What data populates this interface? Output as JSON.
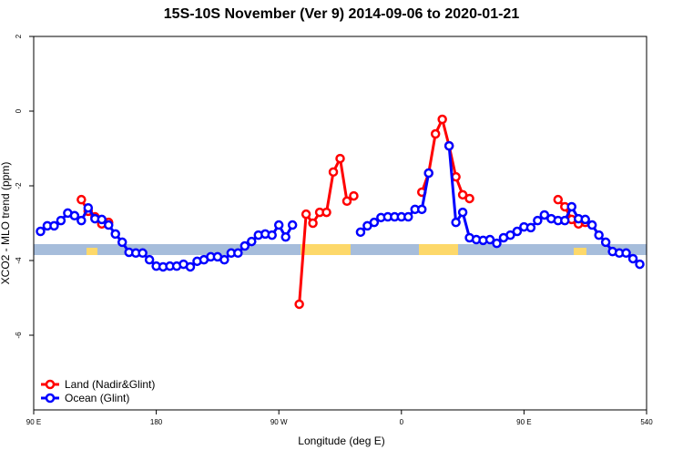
{
  "chart_data": {
    "type": "line",
    "title": "15S-10S November (Ver 9)   2014-09-06 to 2020-01-21",
    "x_label": "Longitude (deg E)",
    "y_label": "XCO2 - MLO trend (ppm)",
    "x": [
      95,
      100,
      105,
      110,
      115,
      120,
      125,
      130,
      135,
      140,
      145,
      150,
      155,
      160,
      165,
      170,
      175,
      180,
      185,
      190,
      195,
      200,
      205,
      210,
      215,
      220,
      225,
      230,
      235,
      240,
      245,
      250,
      255,
      260,
      265,
      270,
      275,
      280,
      285,
      290,
      295,
      300,
      305,
      310,
      315,
      320,
      325,
      330,
      335,
      340,
      345,
      350,
      355,
      360,
      365,
      370,
      375,
      380,
      385,
      390,
      395,
      400,
      405,
      410,
      415,
      420,
      425,
      430,
      435,
      440,
      445,
      450,
      455,
      460,
      465,
      470,
      475,
      480,
      485,
      490,
      495,
      500,
      505,
      510,
      515,
      520,
      525,
      530,
      535
    ],
    "series": [
      {
        "name": "Land (Nadir&Glint)",
        "color": "#ff0000",
        "values": [
          null,
          null,
          null,
          null,
          null,
          null,
          -2.37,
          -2.68,
          -2.83,
          -3.02,
          -2.98,
          null,
          null,
          null,
          null,
          null,
          null,
          null,
          null,
          null,
          null,
          null,
          null,
          null,
          null,
          null,
          null,
          null,
          null,
          null,
          null,
          null,
          null,
          null,
          null,
          null,
          null,
          null,
          -5.17,
          -2.76,
          -3.0,
          -2.71,
          -2.71,
          -1.63,
          -1.27,
          -2.41,
          -2.27,
          null,
          null,
          null,
          null,
          null,
          null,
          null,
          null,
          null,
          -2.17,
          -1.66,
          -0.61,
          -0.22,
          -0.93,
          -1.76,
          -2.24,
          -2.34,
          null,
          null,
          null,
          null,
          null,
          null,
          null,
          null,
          null,
          null,
          null,
          null,
          -2.37,
          -2.56,
          -2.9,
          -3.02,
          -2.98,
          null,
          null,
          null,
          null,
          null,
          null,
          null,
          null
        ]
      },
      {
        "name": "Ocean (Glint)",
        "color": "#0000ff",
        "values": [
          -3.22,
          -3.07,
          -3.07,
          -2.93,
          -2.73,
          -2.8,
          -2.93,
          -2.59,
          -2.88,
          -2.9,
          -3.05,
          -3.29,
          -3.51,
          -3.78,
          -3.8,
          -3.8,
          -3.98,
          -4.15,
          -4.17,
          -4.15,
          -4.15,
          -4.1,
          -4.17,
          -4.02,
          -3.98,
          -3.9,
          -3.9,
          -3.98,
          -3.8,
          -3.8,
          -3.61,
          -3.49,
          -3.32,
          -3.29,
          -3.32,
          -3.05,
          -3.37,
          -3.05,
          null,
          null,
          null,
          null,
          null,
          null,
          null,
          null,
          null,
          -3.24,
          -3.07,
          -2.98,
          -2.85,
          -2.83,
          -2.83,
          -2.83,
          -2.83,
          -2.63,
          -2.63,
          -1.66,
          null,
          null,
          -0.93,
          -2.98,
          -2.71,
          -3.39,
          -3.44,
          -3.46,
          -3.44,
          -3.54,
          -3.39,
          -3.32,
          -3.22,
          -3.1,
          -3.12,
          -2.93,
          -2.78,
          -2.88,
          -2.93,
          -2.93,
          -2.56,
          -2.88,
          -2.9,
          -3.05,
          -3.32,
          -3.51,
          -3.76,
          -3.8,
          -3.8,
          -3.95,
          -4.1
        ]
      }
    ],
    "xlim": [
      90,
      540
    ],
    "xticks": [
      {
        "value": 90,
        "label": "90 E"
      },
      180,
      {
        "value": 270,
        "label": "90 W"
      },
      {
        "value": 360,
        "label": "0"
      },
      {
        "value": 450,
        "label": "90 E"
      },
      540
    ],
    "ylim": [
      -8,
      2
    ],
    "yticks": [
      2,
      0,
      -2,
      -4,
      -6
    ],
    "legend": "bottom-left"
  }
}
